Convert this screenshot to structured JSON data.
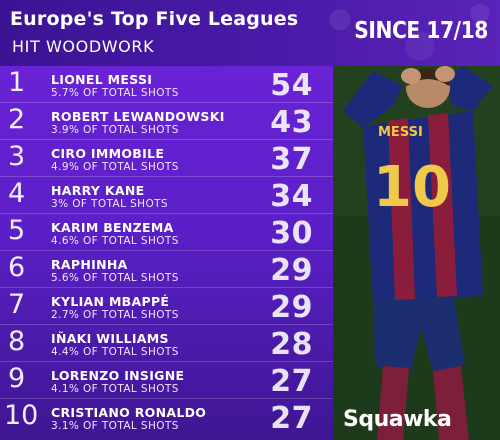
{
  "header": {
    "title": "Europe's Top Five Leagues",
    "subtitle": "HIT WOODWORK",
    "since": "SINCE 17/18"
  },
  "rows": [
    {
      "rank": "1",
      "name": "LIONEL MESSI",
      "pct": "5.7% OF TOTAL SHOTS",
      "value": "54"
    },
    {
      "rank": "2",
      "name": "ROBERT LEWANDOWSKI",
      "pct": "3.9% OF TOTAL SHOTS",
      "value": "43"
    },
    {
      "rank": "3",
      "name": "CIRO IMMOBILE",
      "pct": "4.9% OF TOTAL SHOTS",
      "value": "37"
    },
    {
      "rank": "4",
      "name": "HARRY KANE",
      "pct": "3% OF TOTAL SHOTS",
      "value": "34"
    },
    {
      "rank": "5",
      "name": "KARIM BENZEMA",
      "pct": "4.6% OF TOTAL SHOTS",
      "value": "30"
    },
    {
      "rank": "6",
      "name": "RAPHINHA",
      "pct": "5.6% OF TOTAL SHOTS",
      "value": "29"
    },
    {
      "rank": "7",
      "name": "KYLIAN MBAPPÉ",
      "pct": "2.7% OF TOTAL SHOTS",
      "value": "29"
    },
    {
      "rank": "8",
      "name": "IÑAKI WILLIAMS",
      "pct": "4.4% OF TOTAL SHOTS",
      "value": "28"
    },
    {
      "rank": "9",
      "name": "LORENZO INSIGNE",
      "pct": "4.1% OF TOTAL SHOTS",
      "value": "27"
    },
    {
      "rank": "10",
      "name": "CRISTIANO RONALDO",
      "pct": "3.1% OF TOTAL SHOTS",
      "value": "27"
    }
  ],
  "photo": {
    "shirt_name": "MESSI",
    "shirt_number": "10"
  },
  "brand": "Squawka",
  "colors": {
    "list_top": "#6a22d6",
    "list_bottom": "#3e1692",
    "header": "#4a1aa8"
  }
}
